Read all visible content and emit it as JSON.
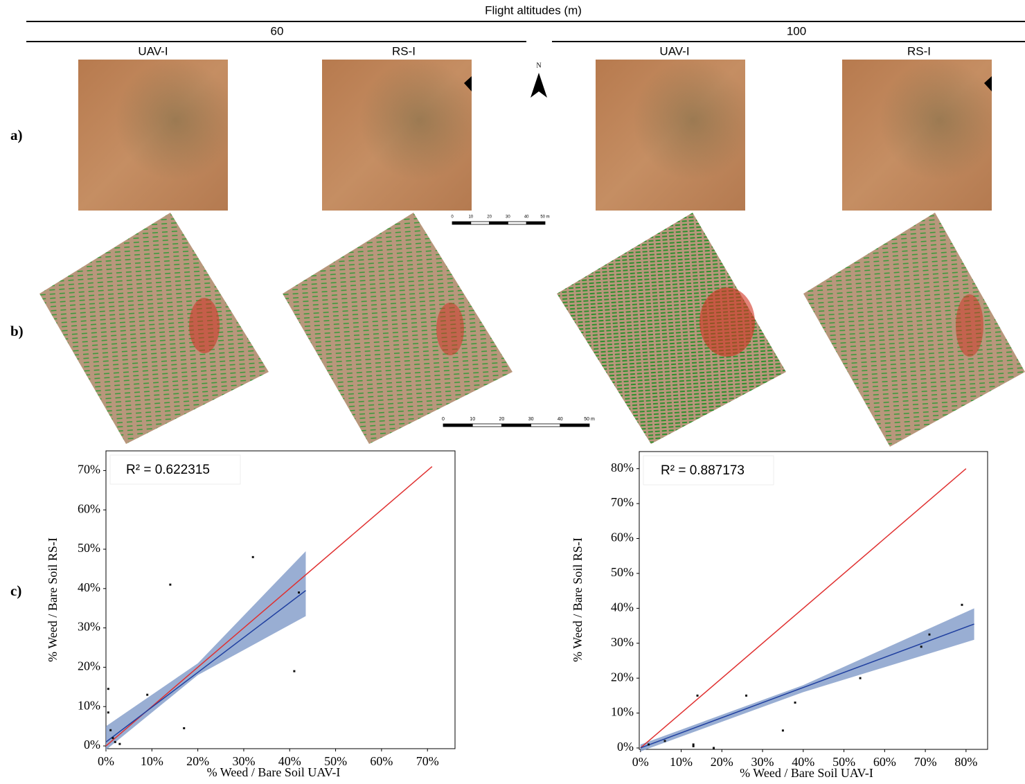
{
  "header": {
    "title": "Flight altitudes (m)",
    "altitudes": [
      "60",
      "100"
    ],
    "sensors": [
      "UAV-I",
      "RS-I",
      "UAV-I",
      "RS-I"
    ]
  },
  "row_labels": [
    "a)",
    "b)",
    "c)"
  ],
  "north": "N",
  "scale_bars": [
    {
      "ticks": [
        "0",
        "10",
        "20",
        "30",
        "40",
        "50 m"
      ]
    },
    {
      "ticks": [
        "0",
        "10",
        "20",
        "30",
        "40",
        "50 m"
      ]
    }
  ],
  "chart_data": [
    {
      "type": "scatter",
      "annotation": "R² = 0.622315",
      "xlabel": "% Weed / Bare Soil UAV-I",
      "ylabel": "% Weed / Bare Soil RS-I",
      "xlim": [
        0,
        76
      ],
      "ylim": [
        -0.7,
        75
      ],
      "xticks": [
        {
          "value": 0,
          "label": "0%"
        },
        {
          "value": 10,
          "label": "10%"
        },
        {
          "value": 20,
          "label": "20%"
        },
        {
          "value": 30,
          "label": "30%"
        },
        {
          "value": 40,
          "label": "40%"
        },
        {
          "value": 50,
          "label": "50%"
        },
        {
          "value": 60,
          "label": "60%"
        },
        {
          "value": 70,
          "label": "70%"
        }
      ],
      "yticks": [
        {
          "value": 0,
          "label": "0%"
        },
        {
          "value": 10,
          "label": "10%"
        },
        {
          "value": 20,
          "label": "20%"
        },
        {
          "value": 30,
          "label": "30%"
        },
        {
          "value": 40,
          "label": "40%"
        },
        {
          "value": 50,
          "label": "50%"
        },
        {
          "value": 60,
          "label": "60%"
        },
        {
          "value": 70,
          "label": "70%"
        }
      ],
      "series": [
        {
          "style": "band",
          "color": "#7f9ac8",
          "x": [
            0,
            20,
            43.5
          ],
          "upper": [
            5,
            21,
            49.5
          ],
          "lower": [
            -1,
            18,
            33
          ]
        },
        {
          "style": "line",
          "color": "#e03030",
          "x": [
            0,
            71
          ],
          "values": [
            0,
            71
          ]
        },
        {
          "style": "line",
          "color": "#2040a0",
          "x": [
            0,
            43.5
          ],
          "values": [
            1,
            39.5
          ]
        },
        {
          "style": "points",
          "color": "#111111",
          "x": [
            0.5,
            0.5,
            1,
            1.5,
            2,
            3,
            9,
            14,
            17,
            32,
            41,
            42
          ],
          "values": [
            14.5,
            8.5,
            4,
            2,
            1,
            0.5,
            13,
            41,
            4.5,
            48,
            19,
            39
          ]
        }
      ]
    },
    {
      "type": "scatter",
      "annotation": "R² = 0.887173",
      "xlabel": "% Weed / Bare Soil UAV-I",
      "ylabel": "% Weed / Bare Soil RS-I",
      "xlim": [
        -0.3,
        85.3
      ],
      "ylim": [
        -0.4,
        84.9
      ],
      "xticks": [
        {
          "value": 0,
          "label": "0%"
        },
        {
          "value": 10,
          "label": "10%"
        },
        {
          "value": 20,
          "label": "20%"
        },
        {
          "value": 30,
          "label": "30%"
        },
        {
          "value": 40,
          "label": "40%"
        },
        {
          "value": 50,
          "label": "50%"
        },
        {
          "value": 60,
          "label": "60%"
        },
        {
          "value": 70,
          "label": "70%"
        },
        {
          "value": 80,
          "label": "80%"
        }
      ],
      "yticks": [
        {
          "value": 0,
          "label": "0%"
        },
        {
          "value": 10,
          "label": "10%"
        },
        {
          "value": 20,
          "label": "20%"
        },
        {
          "value": 30,
          "label": "30%"
        },
        {
          "value": 40,
          "label": "40%"
        },
        {
          "value": 50,
          "label": "50%"
        },
        {
          "value": 60,
          "label": "60%"
        },
        {
          "value": 70,
          "label": "70%"
        },
        {
          "value": 80,
          "label": "80%"
        }
      ],
      "series": [
        {
          "style": "band",
          "color": "#7f9ac8",
          "x": [
            0,
            40,
            82
          ],
          "upper": [
            1,
            18,
            40
          ],
          "lower": [
            -1,
            16,
            31
          ]
        },
        {
          "style": "line",
          "color": "#e03030",
          "x": [
            0,
            80
          ],
          "values": [
            0,
            80
          ]
        },
        {
          "style": "line",
          "color": "#2040a0",
          "x": [
            0,
            82
          ],
          "values": [
            0,
            35.5
          ]
        },
        {
          "style": "points",
          "color": "#111111",
          "x": [
            2,
            6,
            13,
            13,
            14,
            18,
            26,
            35,
            38,
            54,
            69,
            71,
            79
          ],
          "values": [
            1,
            2,
            1,
            0.5,
            15,
            0,
            15,
            5,
            13,
            20,
            29,
            32.5,
            41
          ]
        }
      ]
    }
  ]
}
